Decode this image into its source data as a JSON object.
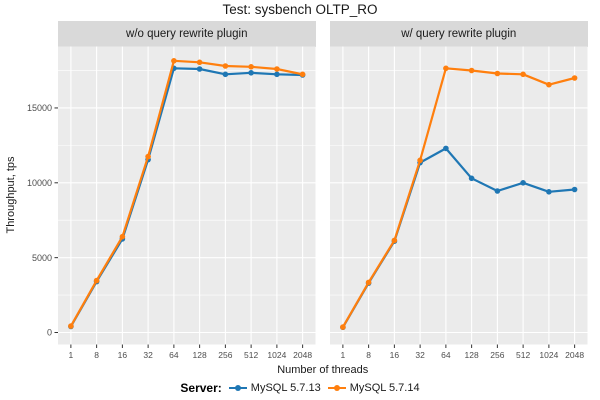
{
  "chart_data": {
    "type": "line",
    "title": "Test: sysbench OLTP_RO",
    "xlabel": "Number of threads",
    "ylabel": "Throughput, tps",
    "categories": [
      "1",
      "8",
      "16",
      "32",
      "64",
      "128",
      "256",
      "512",
      "1024",
      "2048"
    ],
    "y_ticks": [
      0,
      5000,
      10000,
      15000
    ],
    "y_minor_ticks": [
      2500,
      7500,
      12500,
      17500
    ],
    "ylim": [
      -800,
      19000
    ],
    "grid": true,
    "legend_position": "bottom",
    "legend_title": "Server:",
    "facets": [
      {
        "label": "w/o query rewrite plugin",
        "series": [
          {
            "name": "MySQL 5.7.13",
            "color": "#1F77B4",
            "values": [
              400,
              3400,
              6250,
              11550,
              17650,
              17600,
              17250,
              17350,
              17250,
              17200
            ]
          },
          {
            "name": "MySQL 5.7.14",
            "color": "#FF7F0E",
            "values": [
              430,
              3470,
              6400,
              11750,
              18150,
              18050,
              17800,
              17750,
              17600,
              17250
            ]
          }
        ]
      },
      {
        "label": "w/ query rewrite plugin",
        "series": [
          {
            "name": "MySQL 5.7.13",
            "color": "#1F77B4",
            "values": [
              350,
              3300,
              6100,
              11350,
              12300,
              10300,
              9450,
              10000,
              9400,
              9550
            ]
          },
          {
            "name": "MySQL 5.7.14",
            "color": "#FF7F0E",
            "values": [
              360,
              3350,
              6150,
              11500,
              17650,
              17500,
              17300,
              17250,
              16550,
              17000
            ]
          }
        ]
      }
    ]
  },
  "legend": {
    "title": "Server:",
    "entries": [
      {
        "label": "MySQL 5.7.13",
        "color": "#1F77B4"
      },
      {
        "label": "MySQL 5.7.14",
        "color": "#FF7F0E"
      }
    ]
  },
  "style": {
    "background": "#FFFFFF",
    "panel_bg": "#EBEBEB",
    "strip_bg": "#D9D9D9",
    "grid_color": "#FFFFFF",
    "tick_color": "#333333",
    "tick_label_color": "#4D4D4D",
    "text_color": "#1A1A1A"
  }
}
